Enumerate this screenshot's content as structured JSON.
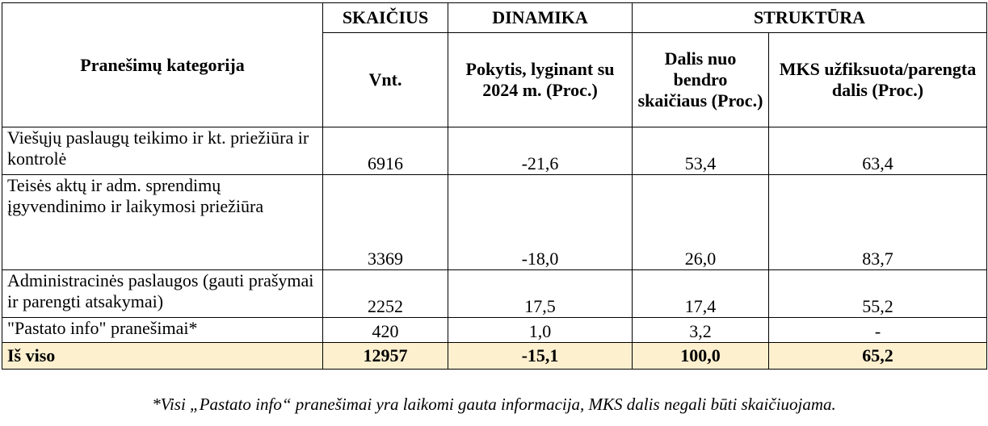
{
  "header": {
    "category": "Pranešimų kategorija",
    "groups": {
      "count": "SKAIČIUS",
      "dynamics": "DINAMIKA",
      "structure": "STRUKTŪRA"
    },
    "columns": {
      "units": "Vnt.",
      "change": "Pokytis, lyginant su 2024 m. (Proc.)",
      "share": "Dalis nuo bendro skaičiaus (Proc.)",
      "mks": "MKS užfiksuota/parengta dalis (Proc.)"
    }
  },
  "rows": [
    {
      "category": "Viešųjų paslaugų teikimo ir kt. priežiūra ir kontrolė",
      "units": "6916",
      "change": "-21,6",
      "share": "53,4",
      "mks": "63,4"
    },
    {
      "category": "Teisės aktų ir adm. sprendimų įgyvendinimo ir laikymosi priežiūra",
      "units": "3369",
      "change": "-18,0",
      "share": "26,0",
      "mks": "83,7"
    },
    {
      "category": "Administracinės paslaugos (gauti prašymai ir parengti atsakymai)",
      "units": "2252",
      "change": "17,5",
      "share": "17,4",
      "mks": "55,2"
    },
    {
      "category": "\"Pastato info\" pranešimai*",
      "units": "420",
      "change": "1,0",
      "share": "3,2",
      "mks": "-"
    }
  ],
  "total": {
    "category": "Iš viso",
    "units": "12957",
    "change": "-15,1",
    "share": "100,0",
    "mks": "65,2"
  },
  "footnote": "*Visi „Pastato info“ pranešimai yra laikomi gauta informacija, MKS dalis negali būti skaičiuojama.",
  "colors": {
    "total_row_background": "#fdf0cf",
    "border": "#000000"
  }
}
